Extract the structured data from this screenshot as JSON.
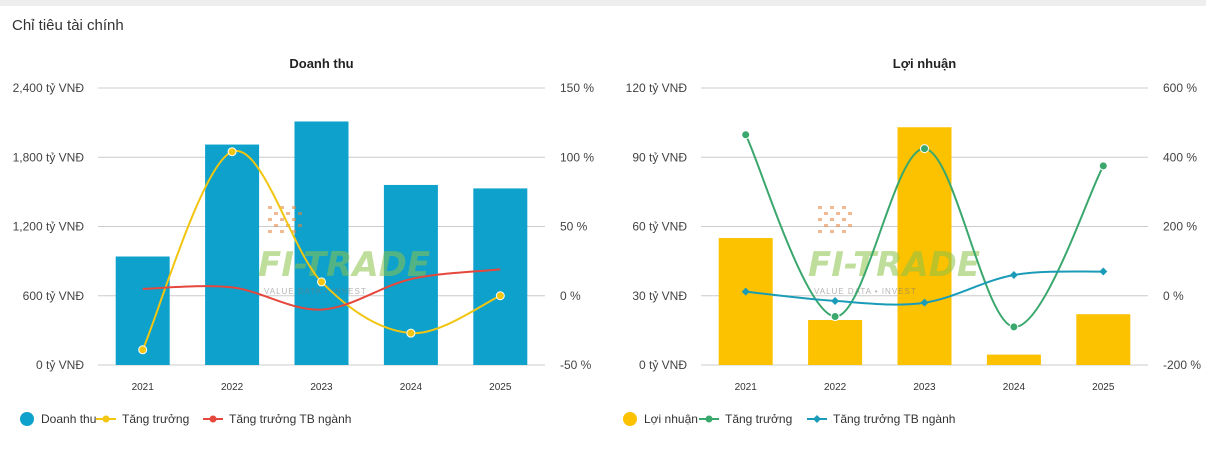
{
  "page": {
    "section_title": "Chỉ tiêu tài chính"
  },
  "watermark": {
    "brand": "FI-TRADE",
    "tagline": "VALUE DATA • INVEST"
  },
  "chart_data": [
    {
      "type": "bar",
      "title": "Doanh thu",
      "categories": [
        "2021",
        "2022",
        "2023",
        "2024",
        "2025"
      ],
      "bar_series": {
        "name": "Doanh thu",
        "values": [
          940,
          1910,
          2110,
          1560,
          1530
        ],
        "color": "#0ea1cc"
      },
      "line_series": [
        {
          "name": "Tăng trưởng",
          "values": [
            -39,
            104,
            10,
            -27,
            0
          ],
          "color": "#f2c511",
          "marker": "circle"
        },
        {
          "name": "Tăng trưởng TB ngành",
          "values": [
            5,
            6,
            -10,
            12,
            19
          ],
          "color": "#e5473c",
          "marker": "none"
        }
      ],
      "y_left": {
        "min": 0,
        "max": 2400,
        "ticks": [
          "0 tỷ VNĐ",
          "600 tỷ VNĐ",
          "1,200 tỷ VNĐ",
          "1,800 tỷ VNĐ",
          "2,400 tỷ VNĐ"
        ]
      },
      "y_right": {
        "min": -50,
        "max": 150,
        "ticks": [
          "-50 %",
          "0 %",
          "50 %",
          "100 %",
          "150 %"
        ]
      }
    },
    {
      "type": "bar",
      "title": "Lợi nhuận",
      "categories": [
        "2021",
        "2022",
        "2023",
        "2024",
        "2025"
      ],
      "bar_series": {
        "name": "Lợi nhuận",
        "values": [
          55,
          19.5,
          103,
          4.5,
          22
        ],
        "color": "#fcc200"
      },
      "line_series": [
        {
          "name": "Tăng trưởng",
          "values": [
            465,
            -60,
            425,
            -90,
            375
          ],
          "color": "#3aa76d",
          "marker": "circle"
        },
        {
          "name": "Tăng trưởng TB ngành",
          "values": [
            12,
            -15,
            -20,
            60,
            70
          ],
          "color": "#1a9bb8",
          "marker": "diamond"
        }
      ],
      "y_left": {
        "min": 0,
        "max": 120,
        "ticks": [
          "0 tỷ VNĐ",
          "30 tỷ VNĐ",
          "60 tỷ VNĐ",
          "90 tỷ VNĐ",
          "120 tỷ VNĐ"
        ]
      },
      "y_right": {
        "min": -200,
        "max": 600,
        "ticks": [
          "-200 %",
          "0 %",
          "200 %",
          "400 %",
          "600 %"
        ]
      }
    }
  ]
}
